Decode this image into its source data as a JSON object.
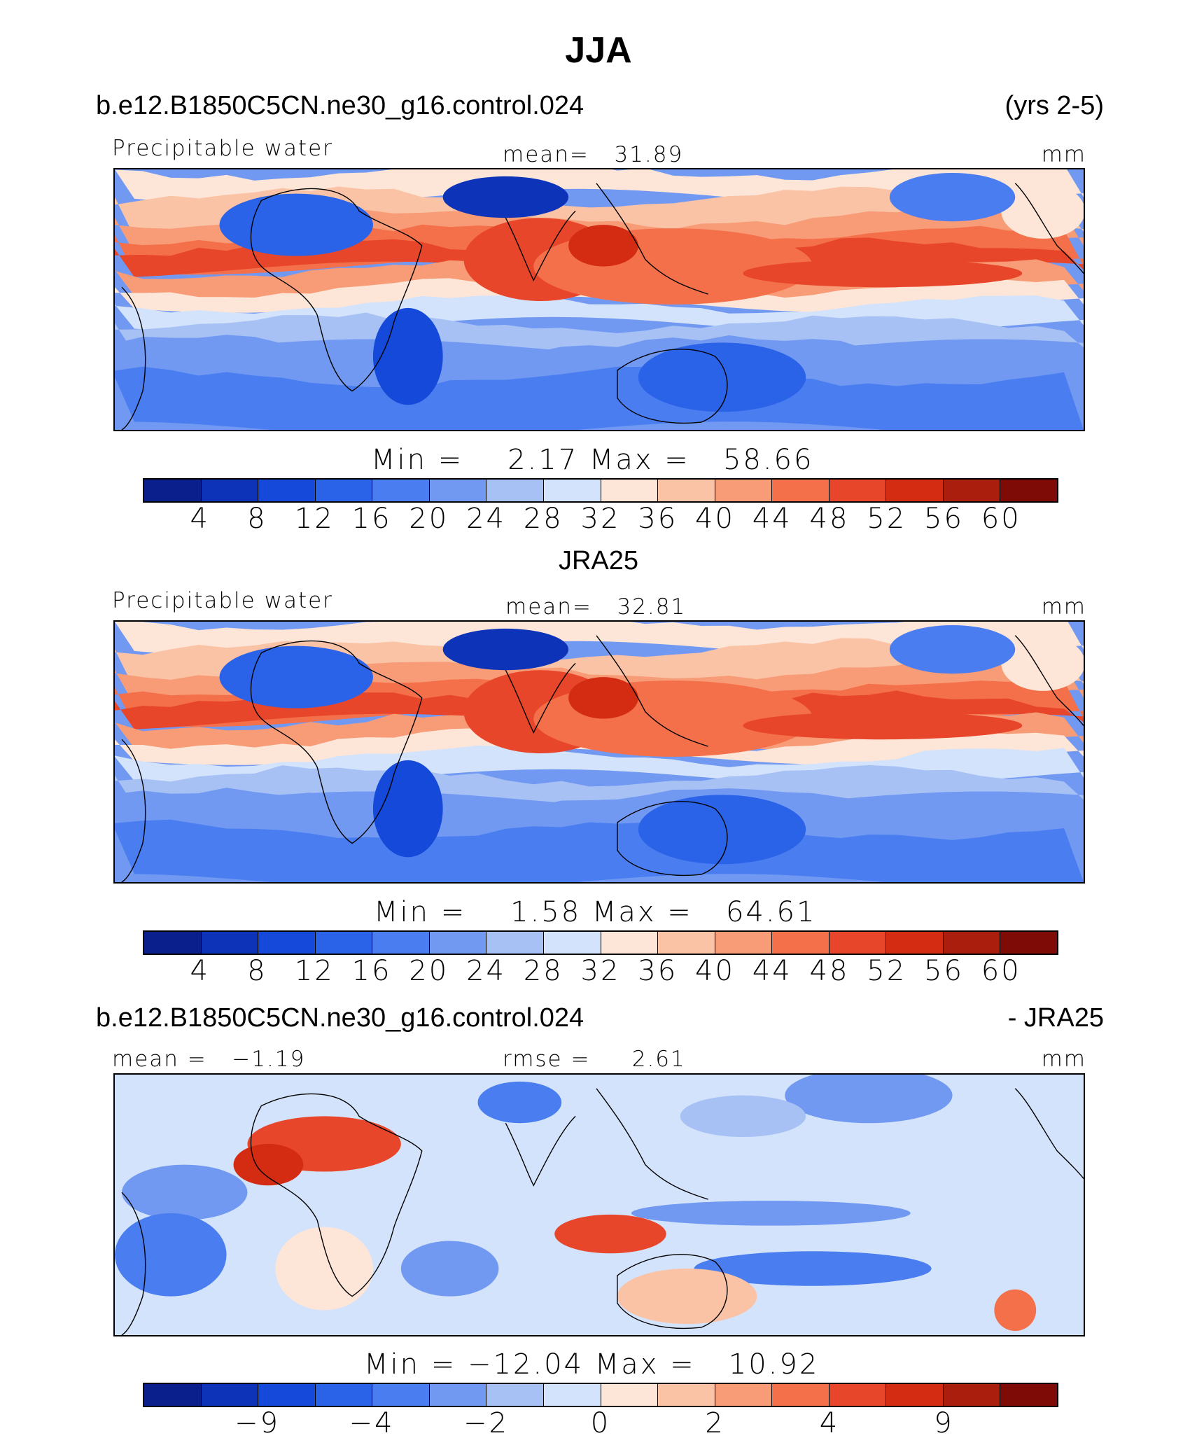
{
  "page": {
    "title": "JJA",
    "years": "(yrs 2-5)"
  },
  "panels": [
    {
      "case_name": "b.e12.B1850C5CN.ne30_g16.control.024",
      "left_label": "Precipitable water",
      "center_label": "mean=   31.89",
      "units": "mm",
      "min_label": "Min",
      "min_value": "2.17",
      "max_label": "Max",
      "max_value": "58.66",
      "levels": [
        "4",
        "8",
        "12",
        "16",
        "20",
        "24",
        "28",
        "32",
        "36",
        "40",
        "44",
        "48",
        "52",
        "56",
        "60"
      ],
      "palette": "full",
      "field_seed": 1
    },
    {
      "case_name": "JRA25",
      "left_label": "Precipitable water",
      "center_label": "mean=   32.81",
      "units": "mm",
      "min_label": "Min",
      "min_value": "1.58",
      "max_label": "Max",
      "max_value": "64.61",
      "levels": [
        "4",
        "8",
        "12",
        "16",
        "20",
        "24",
        "28",
        "32",
        "36",
        "40",
        "44",
        "48",
        "52",
        "56",
        "60"
      ],
      "palette": "full",
      "field_seed": 2
    },
    {
      "case_name": "b.e12.B1850C5CN.ne30_g16.control.024",
      "case_suffix": "- JRA25",
      "left_label": "mean =   −1.19",
      "center_label": "rmse =     2.61",
      "units": "mm",
      "min_label": "Min",
      "min_value": "−12.04",
      "max_label": "Max",
      "max_value": "10.92",
      "levels": [
        "−9",
        "−4",
        "−2",
        "0",
        "2",
        "4",
        "9"
      ],
      "palette": "diff",
      "field_seed": 3
    }
  ],
  "colors": {
    "scale": [
      "#0a1f8c",
      "#0d34b8",
      "#1549d9",
      "#2a63e8",
      "#4a7ef0",
      "#7299f2",
      "#a7c1f5",
      "#d3e3fb",
      "#fde6d8",
      "#fbc3a6",
      "#f79c77",
      "#f4704a",
      "#e8462a",
      "#d42c12",
      "#a91e0c",
      "#7f0b06"
    ],
    "diff_scale": [
      "#0a1f8c",
      "#0d34b8",
      "#1549d9",
      "#2a63e8",
      "#4a7ef0",
      "#7299f2",
      "#a7c1f5",
      "#d3e3fb",
      "#fde6d8",
      "#fbc3a6",
      "#f79c77",
      "#f4704a",
      "#e8462a",
      "#d42c12",
      "#a91e0c",
      "#7f0b06"
    ]
  }
}
